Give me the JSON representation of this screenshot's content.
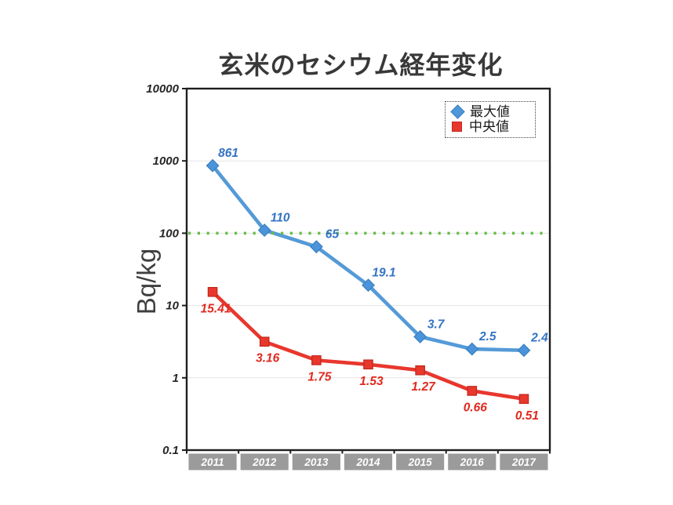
{
  "page": {
    "title": "玄米のセシウム経年変化"
  },
  "chart_data": {
    "type": "line",
    "title": "玄米のセシウム経年変化",
    "xlabel": "",
    "ylabel": "Bq/kg",
    "yscale": "log",
    "ylim": [
      0.1,
      10000
    ],
    "ytick_labels": [
      "10000",
      "1000",
      "100",
      "10",
      "1",
      "0.1"
    ],
    "ytick_values": [
      10000,
      1000,
      100,
      10,
      1,
      0.1
    ],
    "categories": [
      "2011",
      "2012",
      "2013",
      "2014",
      "2015",
      "2016",
      "2017"
    ],
    "series": [
      {
        "name": "最大値",
        "marker": "diamond",
        "color": "#559ad7",
        "marker_color": "#4b94db",
        "marker_edge": "#3a7fc0",
        "label_color": "#3573c4",
        "values": [
          861,
          110,
          65,
          19.1,
          3.7,
          2.5,
          2.4
        ]
      },
      {
        "name": "中央値",
        "marker": "square",
        "color": "#e8372d",
        "marker_color": "#e8372d",
        "marker_edge": "#c0281e",
        "label_color": "#e02a20",
        "values": [
          15.41,
          3.16,
          1.75,
          1.53,
          1.27,
          0.66,
          0.51
        ]
      }
    ],
    "reference_line": {
      "value": 100,
      "color": "#64be46",
      "style": "dotted"
    },
    "legend": {
      "position": "top-right",
      "entries": [
        "最大値",
        "中央値"
      ]
    },
    "grid": true,
    "x_band_fill": "#9b9b9b",
    "x_band_text_color": "#ffffff"
  }
}
